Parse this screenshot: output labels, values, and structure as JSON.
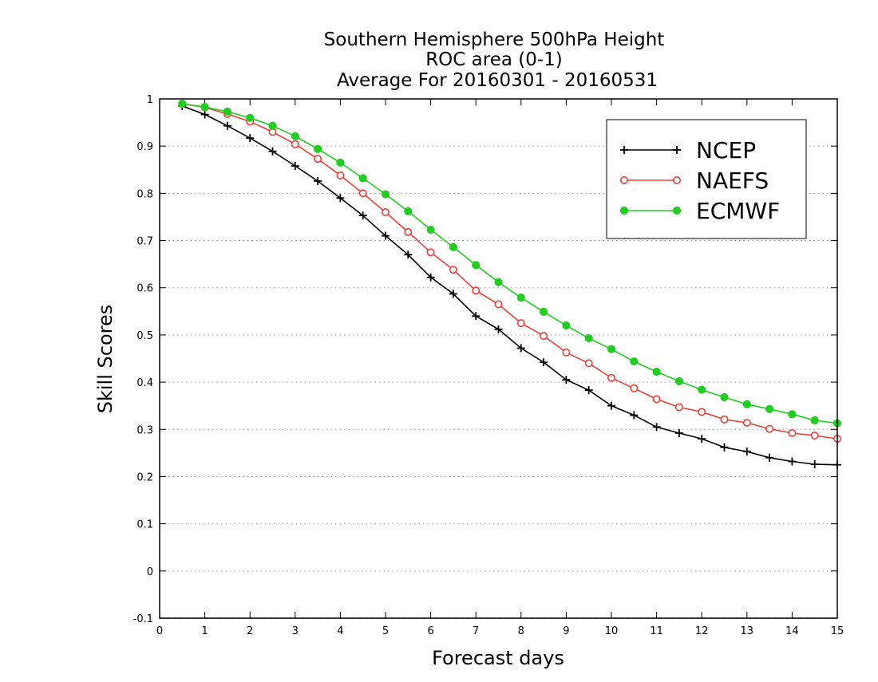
{
  "chart_data": {
    "type": "line",
    "title": [
      "Southern Hemisphere 500hPa Height",
      "ROC area (0-1)",
      "Average For 20160301 - 20160531"
    ],
    "xlabel": "Forecast days",
    "ylabel": "Skill Scores",
    "xlim": [
      0,
      15
    ],
    "ylim": [
      -0.1,
      1
    ],
    "xticks": [
      "0",
      "1",
      "2",
      "3",
      "4",
      "5",
      "6",
      "7",
      "8",
      "9",
      "10",
      "11",
      "12",
      "13",
      "14",
      "15"
    ],
    "yticks": [
      "-0.1",
      "0",
      "0.1",
      "0.2",
      "0.3",
      "0.4",
      "0.5",
      "0.6",
      "0.7",
      "0.8",
      "0.9",
      "1"
    ],
    "grid": {
      "horizontal": true,
      "vertical": false,
      "style": "dotted"
    },
    "legend": {
      "position": "top-right"
    },
    "x": [
      0.5,
      1,
      1.5,
      2,
      2.5,
      3,
      3.5,
      4,
      4.5,
      5,
      5.5,
      6,
      6.5,
      7,
      7.5,
      8,
      8.5,
      9,
      9.5,
      10,
      10.5,
      11,
      11.5,
      12,
      12.5,
      13,
      13.5,
      14,
      14.5,
      15
    ],
    "series": [
      {
        "name": "NCEP",
        "color": "#000000",
        "marker": "plus",
        "values": [
          0.985,
          0.967,
          0.943,
          0.917,
          0.889,
          0.858,
          0.826,
          0.79,
          0.753,
          0.71,
          0.67,
          0.622,
          0.587,
          0.54,
          0.512,
          0.472,
          0.442,
          0.405,
          0.383,
          0.35,
          0.33,
          0.305,
          0.292,
          0.28,
          0.262,
          0.253,
          0.24,
          0.232,
          0.226,
          0.225
        ]
      },
      {
        "name": "NAEFS",
        "color": "#e8413b",
        "marker": "open-circle",
        "values": [
          0.99,
          0.982,
          0.968,
          0.952,
          0.93,
          0.904,
          0.873,
          0.838,
          0.8,
          0.76,
          0.718,
          0.675,
          0.638,
          0.594,
          0.565,
          0.525,
          0.498,
          0.463,
          0.44,
          0.409,
          0.387,
          0.364,
          0.347,
          0.337,
          0.321,
          0.314,
          0.301,
          0.292,
          0.287,
          0.28
        ]
      },
      {
        "name": "ECMWF",
        "color": "#22cc22",
        "marker": "filled-circle",
        "values": [
          0.99,
          0.983,
          0.973,
          0.96,
          0.943,
          0.921,
          0.894,
          0.865,
          0.832,
          0.798,
          0.762,
          0.723,
          0.686,
          0.648,
          0.612,
          0.579,
          0.549,
          0.52,
          0.493,
          0.47,
          0.444,
          0.422,
          0.402,
          0.384,
          0.368,
          0.353,
          0.343,
          0.332,
          0.319,
          0.313
        ]
      }
    ]
  }
}
